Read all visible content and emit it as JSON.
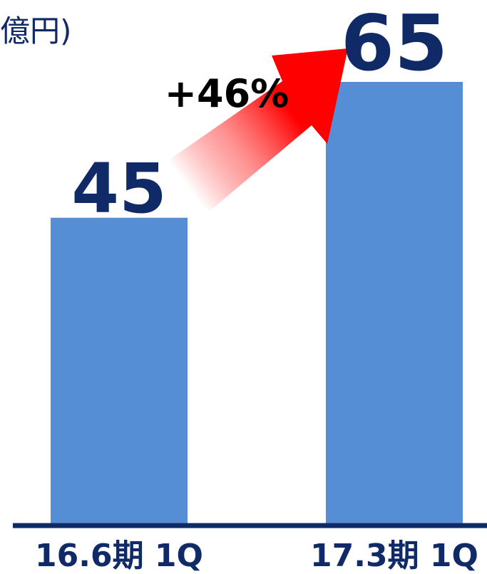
{
  "chart_data": {
    "type": "bar",
    "unit_label": "億円)",
    "categories": [
      "16.6期 1Q",
      "17.3期 1Q"
    ],
    "values": [
      45,
      65
    ],
    "value_labels": [
      "45",
      "65"
    ],
    "annotation": "+46%",
    "ylim": [
      0,
      100
    ],
    "grid": false,
    "colors": {
      "bar": "#558ed5",
      "axis": "#0f2a66",
      "value_text": "#0f2a66",
      "annotation_text": "#000000",
      "arrow": "#ff0000"
    }
  }
}
